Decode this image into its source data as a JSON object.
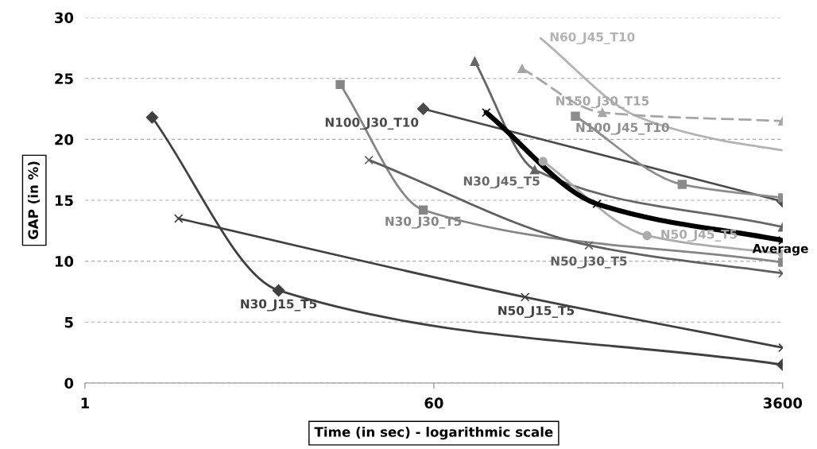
{
  "chart_data": {
    "type": "line",
    "xlabel": "Time (in sec) - logarithmic scale",
    "ylabel": "GAP (in %)",
    "log": "x",
    "xlim": [
      1,
      3600
    ],
    "xticks": [
      1,
      60,
      3600
    ],
    "ylim": [
      0,
      30
    ],
    "yticks": [
      0,
      5,
      10,
      15,
      20,
      25,
      30
    ],
    "grid": "y",
    "legend": false,
    "line_style": "solid",
    "series": [
      {
        "name": "N30_J15_T5",
        "color": "#404040",
        "marker": "diamond",
        "x": [
          2.2,
          9.7,
          3600
        ],
        "values": [
          21.8,
          7.6,
          1.5
        ]
      },
      {
        "name": "N50_J15_T5",
        "color": "#404040",
        "marker": "cross",
        "x": [
          3.0,
          175,
          3600
        ],
        "values": [
          13.5,
          7.05,
          2.9
        ]
      },
      {
        "name": "N30_J30_T5",
        "color": "#858585",
        "marker": "square",
        "x": [
          20,
          53,
          3600
        ],
        "values": [
          24.5,
          14.2,
          9.9
        ]
      },
      {
        "name": "N50_J30_T5",
        "color": "#5f5f5f",
        "marker": "cross",
        "x": [
          28,
          370,
          3600
        ],
        "values": [
          18.3,
          11.3,
          9.0
        ]
      },
      {
        "name": "N100_J30_T10",
        "color": "#4a4a4a",
        "marker": "diamond",
        "x": [
          53,
          3600
        ],
        "values": [
          22.5,
          14.9
        ]
      },
      {
        "name": "N30_J45_T5",
        "color": "#666666",
        "marker": "triangle",
        "x": [
          97,
          196,
          3600
        ],
        "values": [
          26.4,
          17.5,
          12.8
        ]
      },
      {
        "name": "N50_J45_T5",
        "color": "#ababab",
        "marker": "circle",
        "x": [
          216,
          733,
          3600
        ],
        "values": [
          18.2,
          12.1,
          10.6
        ]
      },
      {
        "name": "N100_J45_T10",
        "color": "#8c8c8c",
        "marker": "square",
        "x": [
          316,
          1106,
          3600
        ],
        "values": [
          21.9,
          16.3,
          15.2
        ]
      },
      {
        "name": "N60_J45_T10",
        "color": "#b3b3b3",
        "marker": "none",
        "x": [
          210,
          649,
          1652,
          3600
        ],
        "values": [
          28.3,
          21.9,
          20.0,
          19.1
        ]
      },
      {
        "name": "N150_J30_T15",
        "color": "#a6a6a6",
        "marker": "triangle",
        "line_style": "dashed",
        "x": [
          169,
          434,
          3600
        ],
        "values": [
          25.8,
          22.2,
          21.5
        ]
      },
      {
        "name": "Average",
        "color": "#000000",
        "marker": "cross",
        "x": [
          111,
          407,
          3600
        ],
        "values": [
          22.2,
          14.7,
          11.7
        ]
      }
    ]
  }
}
